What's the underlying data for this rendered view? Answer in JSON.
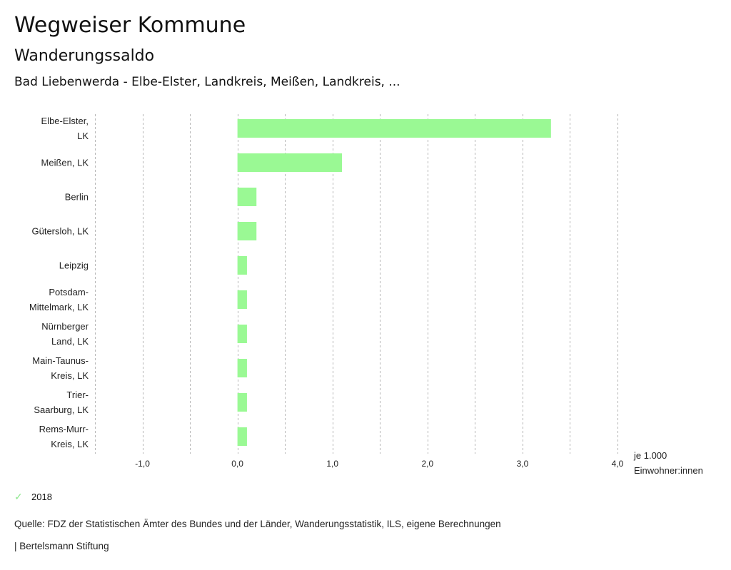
{
  "header": {
    "title": "Wegweiser Kommune",
    "subtitle": "Wanderungssaldo",
    "region": "Bad Liebenwerda - Elbe-Elster, Landkreis, Meißen, Landkreis, ..."
  },
  "legend": {
    "icon": "check-icon",
    "label": "2018",
    "color": "#9af994"
  },
  "footer": {
    "source": "Quelle: FDZ der Statistischen Ämter des Bundes und der Länder, Wanderungsstatistik, ILS, eigene Berechnungen",
    "brand": "| Bertelsmann Stiftung"
  },
  "chart_data": {
    "type": "bar",
    "orientation": "horizontal",
    "title": "Wanderungssaldo",
    "xlabel": "je 1.000 Einwohner:innen",
    "ylabel": "",
    "categories": [
      [
        "Elbe-Elster,",
        "LK"
      ],
      [
        "Meißen, LK"
      ],
      [
        "Berlin"
      ],
      [
        "Gütersloh, LK"
      ],
      [
        "Leipzig"
      ],
      [
        "Potsdam-",
        "Mittelmark, LK"
      ],
      [
        "Nürnberger",
        "Land, LK"
      ],
      [
        "Main-Taunus-",
        "Kreis, LK"
      ],
      [
        "Trier-",
        "Saarburg, LK"
      ],
      [
        "Rems-Murr-",
        "Kreis, LK"
      ]
    ],
    "series": [
      {
        "name": "2018",
        "color": "#9af994",
        "values": [
          3.3,
          1.1,
          0.2,
          0.2,
          0.1,
          0.1,
          0.1,
          0.1,
          0.1,
          0.1
        ]
      }
    ],
    "xlim": [
      -1.5,
      4.0
    ],
    "gridlines": [
      -1.5,
      -1.0,
      -0.5,
      0.0,
      0.5,
      1.0,
      1.5,
      2.0,
      2.5,
      3.0,
      3.5,
      4.0
    ],
    "ticks": [
      {
        "value": -1.0,
        "label": "-1,0"
      },
      {
        "value": 0.0,
        "label": "0,0"
      },
      {
        "value": 1.0,
        "label": "1,0"
      },
      {
        "value": 2.0,
        "label": "2,0"
      },
      {
        "value": 3.0,
        "label": "3,0"
      },
      {
        "value": 4.0,
        "label": "4,0"
      }
    ],
    "unit_label": [
      "je 1.000",
      "Einwohner:innen"
    ],
    "grid": true,
    "legend_position": "bottom-left"
  }
}
